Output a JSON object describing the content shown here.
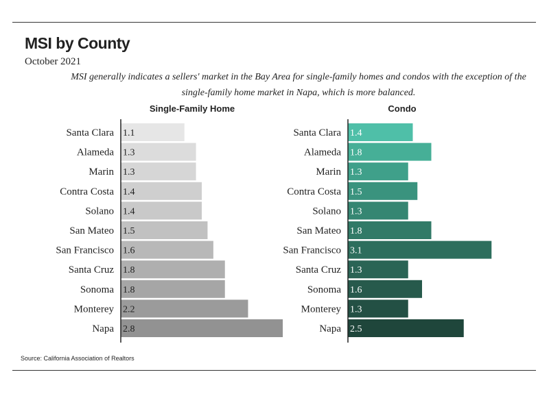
{
  "title": "MSI by County",
  "subtitle": "October 2021",
  "description": "MSI generally indicates a sellers' market in the Bay Area for single-family homes and condos with the exception of the single-family home market in Napa, which is more balanced.",
  "source": "Source:  California Association of Realtors",
  "chart_data": [
    {
      "type": "bar",
      "orientation": "horizontal",
      "title": "Single-Family Home",
      "categories": [
        "Santa Clara",
        "Alameda",
        "Marin",
        "Contra Costa",
        "Solano",
        "San Mateo",
        "San Francisco",
        "Santa Cruz",
        "Sonoma",
        "Monterey",
        "Napa"
      ],
      "values": [
        1.1,
        1.3,
        1.3,
        1.4,
        1.4,
        1.5,
        1.6,
        1.8,
        1.8,
        2.2,
        2.8
      ],
      "value_labels": [
        "1.1",
        "1.3",
        "1.3",
        "1.4",
        "1.4",
        "1.5",
        "1.6",
        "1.8",
        "1.8",
        "2.2",
        "2.8"
      ],
      "colors": [
        "#e6e6e6",
        "#dcdcdc",
        "#d6d6d6",
        "#cfcfcf",
        "#c9c9c9",
        "#c1c1c1",
        "#b8b8b8",
        "#afafaf",
        "#a6a6a6",
        "#9b9b9b",
        "#929292"
      ],
      "grid": false,
      "legend": "none"
    },
    {
      "type": "bar",
      "orientation": "horizontal",
      "title": "Condo",
      "categories": [
        "Santa Clara",
        "Alameda",
        "Marin",
        "Contra Costa",
        "Solano",
        "San Mateo",
        "San Francisco",
        "Santa Cruz",
        "Sonoma",
        "Monterey",
        "Napa"
      ],
      "values": [
        1.4,
        1.8,
        1.3,
        1.5,
        1.3,
        1.8,
        3.1,
        1.3,
        1.6,
        1.3,
        2.5
      ],
      "value_labels": [
        "1.4",
        "1.8",
        "1.3",
        "1.5",
        "1.3",
        "1.8",
        "3.1",
        "1.3",
        "1.6",
        "1.3",
        "2.5"
      ],
      "colors": [
        "#4fbfa8",
        "#46af97",
        "#3fa08a",
        "#3a937e",
        "#358672",
        "#317a67",
        "#2d6e5d",
        "#2a6455",
        "#275a4c",
        "#235044",
        "#1f463b"
      ],
      "grid": false,
      "legend": "none"
    }
  ]
}
